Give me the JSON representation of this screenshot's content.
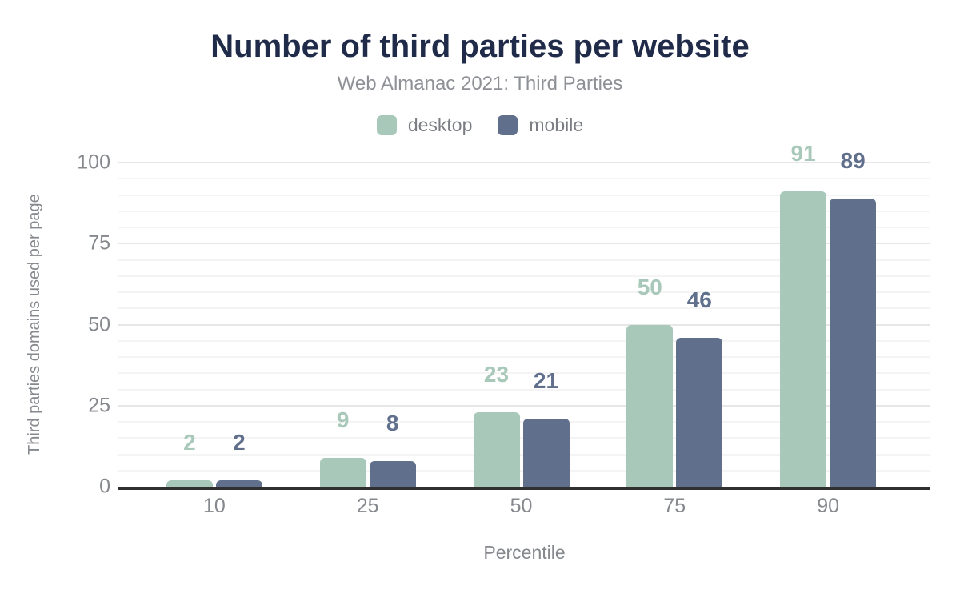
{
  "chart_data": {
    "type": "bar",
    "title": "Number of third parties per website",
    "subtitle": "Web Almanac 2021: Third Parties",
    "categories": [
      "10",
      "25",
      "50",
      "75",
      "90"
    ],
    "series": [
      {
        "name": "desktop",
        "color": "#a8c9ba",
        "values": [
          2,
          9,
          23,
          50,
          91
        ]
      },
      {
        "name": "mobile",
        "color": "#5f6f8c",
        "values": [
          2,
          8,
          21,
          46,
          89
        ]
      }
    ],
    "xlabel": "Percentile",
    "ylabel": "Third parties domains used per page",
    "ylim": [
      0,
      100
    ],
    "yticks": [
      0,
      25,
      50,
      75,
      100
    ],
    "minor_grid_step": 5,
    "grid": true,
    "legend_position": "top",
    "value_labels": true
  },
  "theme": {
    "background": "#ffffff",
    "title_color": "#1f2b49",
    "subtitle_color": "#8d9095",
    "axis_label_color": "#85888d",
    "legend_text_color": "#7a7d83",
    "baseline_color": "#303030",
    "major_gridline_color": "#e7e7e7",
    "minor_gridline_color": "#f4f4f4"
  }
}
